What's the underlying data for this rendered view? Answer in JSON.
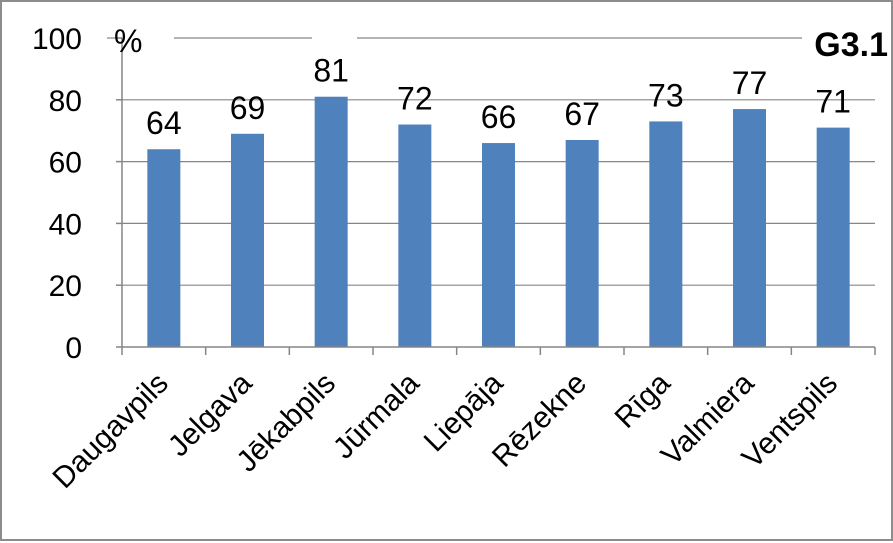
{
  "chart_data": {
    "type": "bar",
    "title": "",
    "chart_tag": "G3.1",
    "ylabel": "%",
    "xlabel": "",
    "ylim": [
      0,
      100
    ],
    "yticks": [
      0,
      20,
      40,
      60,
      80,
      100
    ],
    "grid": true,
    "legend": "none",
    "categories": [
      "Daugavpils",
      "Jelgava",
      "Jēkabpils",
      "Jūrmala",
      "Liepāja",
      "Rēzekne",
      "Rīga",
      "Valmiera",
      "Ventspils"
    ],
    "values": [
      64,
      69,
      81,
      72,
      66,
      67,
      73,
      77,
      71
    ],
    "colors": {
      "bar": "#4f81bd",
      "grid": "#868686",
      "axis": "#868686"
    }
  }
}
